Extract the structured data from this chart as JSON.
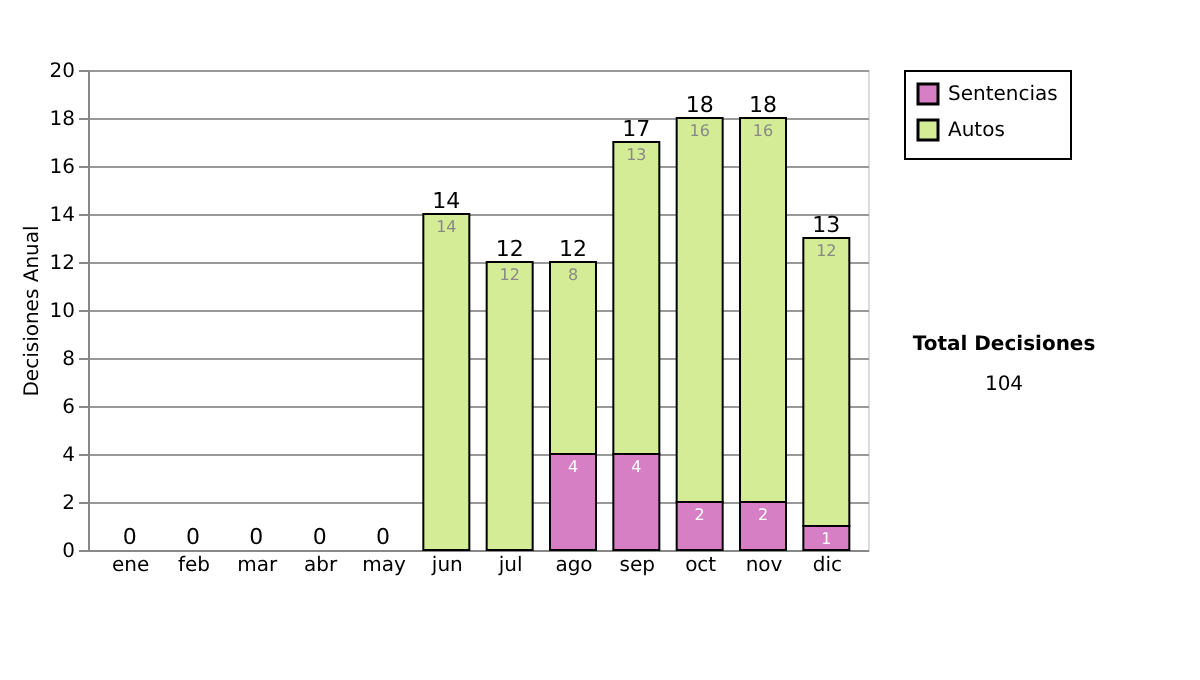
{
  "chart_data": {
    "type": "bar",
    "stacked": true,
    "ylabel": "Decisiones Anual",
    "categories": [
      "ene",
      "feb",
      "mar",
      "abr",
      "may",
      "jun",
      "jul",
      "ago",
      "sep",
      "oct",
      "nov",
      "dic"
    ],
    "series": [
      {
        "name": "Sentencias",
        "color": "#d77fc4",
        "values": [
          0,
          0,
          0,
          0,
          0,
          0,
          0,
          4,
          4,
          2,
          2,
          1
        ],
        "value_labels": [
          null,
          null,
          null,
          null,
          null,
          null,
          null,
          "4",
          "4",
          "2",
          "2",
          "1"
        ]
      },
      {
        "name": "Autos",
        "color": "#d5ec96",
        "values": [
          0,
          0,
          0,
          0,
          0,
          14,
          12,
          8,
          13,
          16,
          16,
          12
        ],
        "value_labels": [
          null,
          null,
          null,
          null,
          null,
          "14",
          "12",
          "8",
          "13",
          "16",
          "16",
          "12"
        ]
      }
    ],
    "totals": [
      "0",
      "0",
      "0",
      "0",
      "0",
      "14",
      "12",
      "12",
      "17",
      "18",
      "18",
      "13"
    ],
    "ylim": [
      0,
      20
    ],
    "yticks": [
      0,
      2,
      4,
      6,
      8,
      10,
      12,
      14,
      16,
      18,
      20
    ],
    "grid": "y",
    "legend": "right",
    "annotations": [
      "Total Decisiones",
      "104"
    ]
  }
}
